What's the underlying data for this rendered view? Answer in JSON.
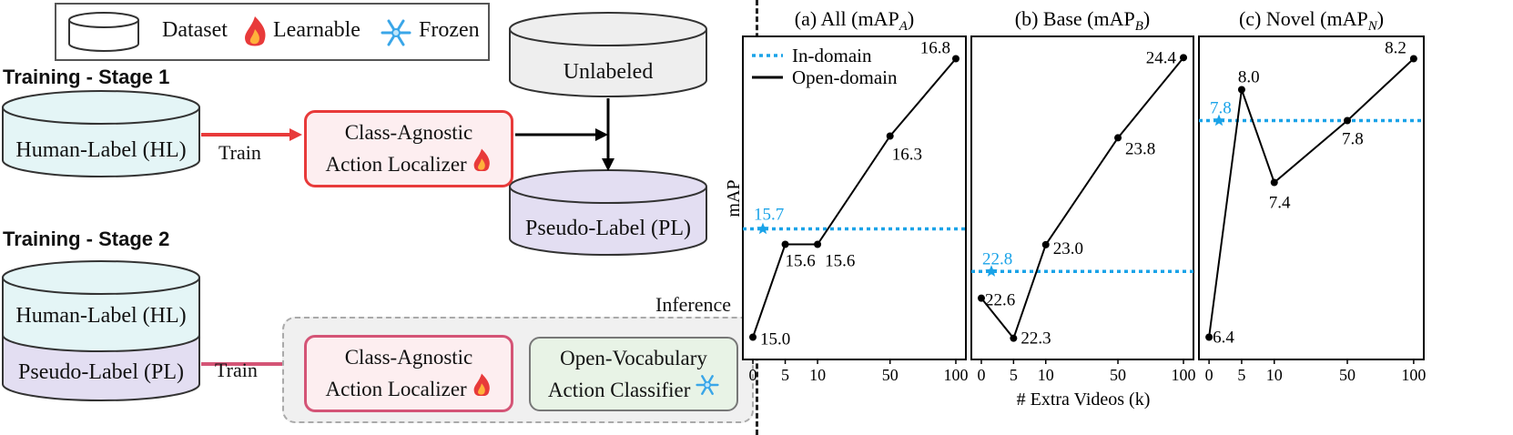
{
  "legend": {
    "dataset_label": "Dataset",
    "learnable_label": "Learnable",
    "frozen_label": "Frozen"
  },
  "stage1": {
    "title": "Training - Stage 1",
    "hl_label": "Human-Label (HL)",
    "train_label": "Train",
    "localizer_line1": "Class-Agnostic",
    "localizer_line2": "Action Localizer",
    "unlabeled_label": "Unlabeled",
    "pl_label": "Pseudo-Label (PL)"
  },
  "stage2": {
    "title": "Training - Stage 2",
    "hl_label": "Human-Label (HL)",
    "pl_label": "Pseudo-Label (PL)",
    "train_label": "Train",
    "inference_label": "Inference",
    "localizer_line1": "Class-Agnostic",
    "localizer_line2": "Action Localizer",
    "classifier_line1": "Open-Vocabulary",
    "classifier_line2": "Action Classifier"
  },
  "colors": {
    "in_domain": "#1aa3e8",
    "open_domain": "#000000",
    "learnable_red": "#e83a3a",
    "hl_fill": "#e4f5f6",
    "pl_fill": "#e3def2",
    "unlabeled_fill": "#eeeeee"
  },
  "chart_legend": {
    "in_domain": "In-domain",
    "open_domain": "Open-domain"
  },
  "chart_data": [
    {
      "type": "line",
      "title_main": "(a) All (mAP",
      "title_sub": "A",
      "ylabel": "mAP",
      "x": [
        0,
        5,
        10,
        50,
        100
      ],
      "x_tick_labels": [
        "0",
        "5",
        "10",
        "50",
        "100"
      ],
      "x_scale": "log-like",
      "series": [
        {
          "name": "Open-domain",
          "values": [
            15.0,
            15.6,
            15.6,
            16.3,
            16.8
          ],
          "labels": [
            "15.0",
            "15.6",
            "15.6",
            "16.3",
            "16.8"
          ]
        }
      ],
      "in_domain": {
        "name": "In-domain",
        "value": 15.7,
        "label": "15.7"
      },
      "ylim": [
        14.95,
        16.85
      ]
    },
    {
      "type": "line",
      "title_main": "(b) Base (mAP",
      "title_sub": "B",
      "xlabel": "# Extra Videos (k)",
      "x": [
        0,
        5,
        10,
        50,
        100
      ],
      "x_tick_labels": [
        "0",
        "5",
        "10",
        "50",
        "100"
      ],
      "x_scale": "log-like",
      "series": [
        {
          "values": [
            22.6,
            22.3,
            23.0,
            23.8,
            24.4
          ],
          "labels": [
            "22.6",
            "22.3",
            "23.0",
            "23.8",
            "24.4"
          ]
        }
      ],
      "in_domain": {
        "value": 22.8,
        "label": "22.8"
      },
      "ylim": [
        22.25,
        24.45
      ]
    },
    {
      "type": "line",
      "title_main": "(c) Novel (mAP",
      "title_sub": "N",
      "x": [
        0,
        5,
        10,
        50,
        100
      ],
      "x_tick_labels": [
        "0",
        "5",
        "10",
        "50",
        "100"
      ],
      "x_scale": "log-like",
      "series": [
        {
          "values": [
            6.4,
            8.0,
            7.4,
            7.8,
            8.2
          ],
          "labels": [
            "6.4",
            "8.0",
            "7.4",
            "7.8",
            "8.2"
          ]
        }
      ],
      "in_domain": {
        "value": 7.8,
        "label": "7.8"
      },
      "ylim": [
        6.35,
        8.25
      ]
    }
  ]
}
